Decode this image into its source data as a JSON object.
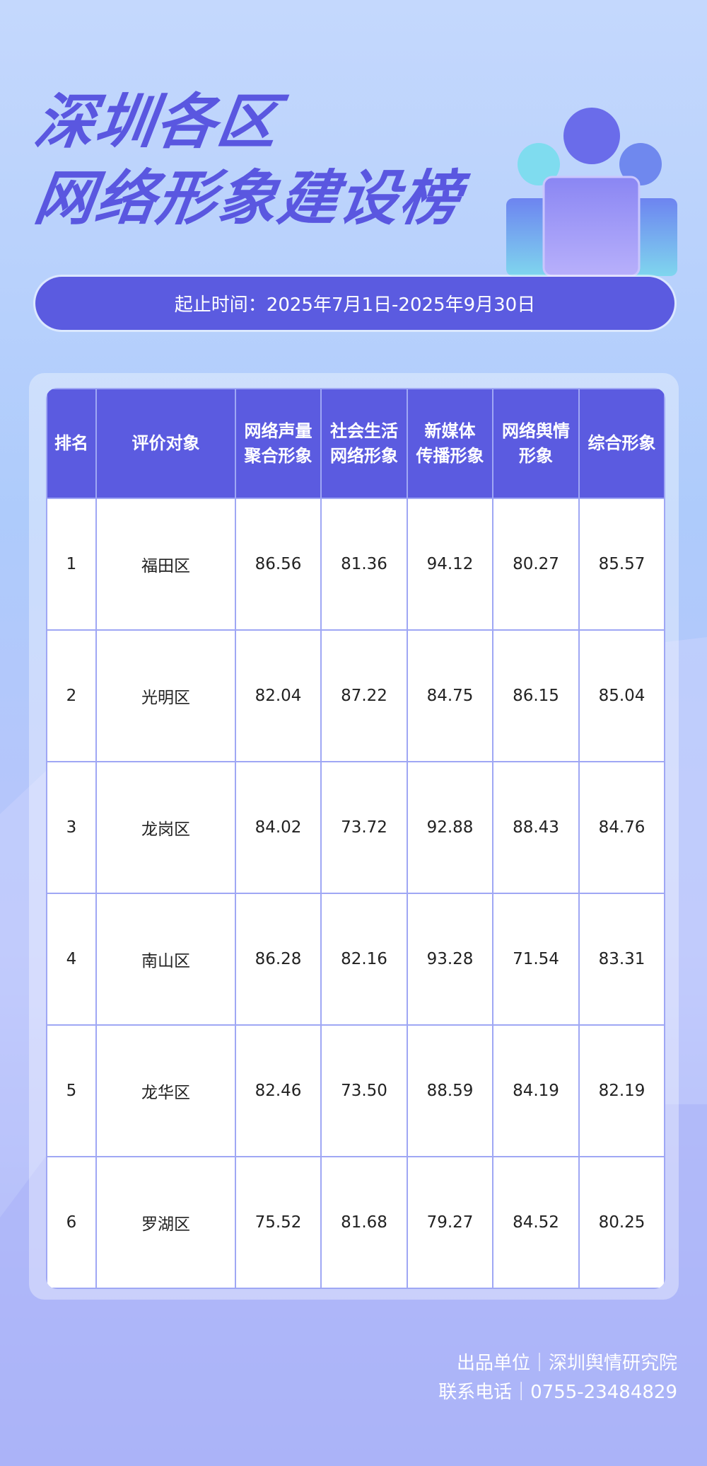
{
  "header": {
    "title": [
      "深圳各区",
      "网络形象建设榜"
    ],
    "period": "起止时间：2025年7月1日-2025年9月30日"
  },
  "table": {
    "headers": [
      [
        "排名"
      ],
      [
        "评价对象"
      ],
      [
        "网络声量",
        "聚合形象"
      ],
      [
        "社会生活",
        "网络形象"
      ],
      [
        "新媒体",
        "传播形象"
      ],
      [
        "网络舆情",
        "形象"
      ],
      [
        "综合形象"
      ]
    ],
    "rows": [
      [
        "1",
        "福田区",
        "86.56",
        "81.36",
        "94.12",
        "80.27",
        "85.57"
      ],
      [
        "2",
        "光明区",
        "82.04",
        "87.22",
        "84.75",
        "86.15",
        "85.04"
      ],
      [
        "3",
        "龙岗区",
        "84.02",
        "73.72",
        "92.88",
        "88.43",
        "84.76"
      ],
      [
        "4",
        "南山区",
        "86.28",
        "82.16",
        "93.28",
        "71.54",
        "83.31"
      ],
      [
        "5",
        "龙华区",
        "82.46",
        "73.50",
        "88.59",
        "84.19",
        "82.19"
      ],
      [
        "6",
        "罗湖区",
        "75.52",
        "81.68",
        "79.27",
        "84.52",
        "80.25"
      ]
    ]
  },
  "footer": [
    "出品单位｜深圳舆情研究院",
    "联系电话｜0755-23484829"
  ]
}
